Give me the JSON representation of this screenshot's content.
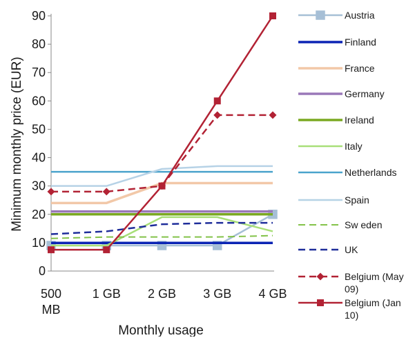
{
  "chart_data": {
    "type": "line",
    "title": "",
    "xlabel": "Monthly usage",
    "ylabel": "Minimum monthly price (EUR)",
    "categories": [
      [
        "500",
        "MB"
      ],
      [
        "1 GB"
      ],
      [
        "2 GB"
      ],
      [
        "3 GB"
      ],
      [
        "4 GB"
      ]
    ],
    "ylim": [
      0,
      90
    ],
    "yticks": [
      0,
      10,
      20,
      30,
      40,
      50,
      60,
      70,
      80,
      90
    ],
    "grid": false,
    "legend_position": "right",
    "series": [
      {
        "name": "Austria",
        "values": [
          9,
          9,
          9,
          9,
          20
        ],
        "color": "#a6bfd6",
        "dash": "solid",
        "marker": "square",
        "width": 2.5
      },
      {
        "name": "Finland",
        "values": [
          9.9,
          9.9,
          9.9,
          9.9,
          9.9
        ],
        "color": "#0b24b4",
        "dash": "solid",
        "marker": "none",
        "width": 3.5
      },
      {
        "name": "France",
        "values": [
          24,
          24,
          31,
          31,
          31
        ],
        "color": "#f2c8a8",
        "dash": "solid",
        "marker": "none",
        "width": 3.5
      },
      {
        "name": "Germany",
        "values": [
          21,
          21,
          21,
          21,
          21
        ],
        "color": "#9a78b8",
        "dash": "solid",
        "marker": "none",
        "width": 3.5
      },
      {
        "name": "Ireland",
        "values": [
          20,
          20,
          20,
          20,
          20
        ],
        "color": "#7aa820",
        "dash": "solid",
        "marker": "none",
        "width": 3.5
      },
      {
        "name": "Italy",
        "values": [
          9,
          9,
          19,
          19,
          14
        ],
        "color": "#a8df78",
        "dash": "solid",
        "marker": "none",
        "width": 2.5
      },
      {
        "name": "Netherlands",
        "values": [
          35,
          35,
          35,
          35,
          35
        ],
        "color": "#4aa3cc",
        "dash": "solid",
        "marker": "none",
        "width": 2.5
      },
      {
        "name": "Spain",
        "values": [
          30,
          30,
          36,
          37,
          37
        ],
        "color": "#b6d2e6",
        "dash": "solid",
        "marker": "none",
        "width": 2.5
      },
      {
        "name": "Sw eden",
        "values": [
          11.5,
          12,
          12,
          12,
          12.5
        ],
        "color": "#82c248",
        "dash": "dashed",
        "marker": "none",
        "width": 2
      },
      {
        "name": "UK",
        "values": [
          13,
          14,
          16.5,
          17,
          17
        ],
        "color": "#1e2d9a",
        "dash": "dashed",
        "marker": "none",
        "width": 2.5
      },
      {
        "name": [
          "Belgium (May",
          "09)"
        ],
        "values": [
          28,
          28,
          30,
          55,
          55
        ],
        "color": "#b22234",
        "dash": "dashed",
        "marker": "diamond",
        "width": 2.5
      },
      {
        "name": [
          "Belgium (Jan",
          "10)"
        ],
        "values": [
          7.5,
          7.5,
          30,
          60,
          90
        ],
        "color": "#b22234",
        "dash": "solid",
        "marker": "square",
        "width": 2.5
      }
    ]
  }
}
